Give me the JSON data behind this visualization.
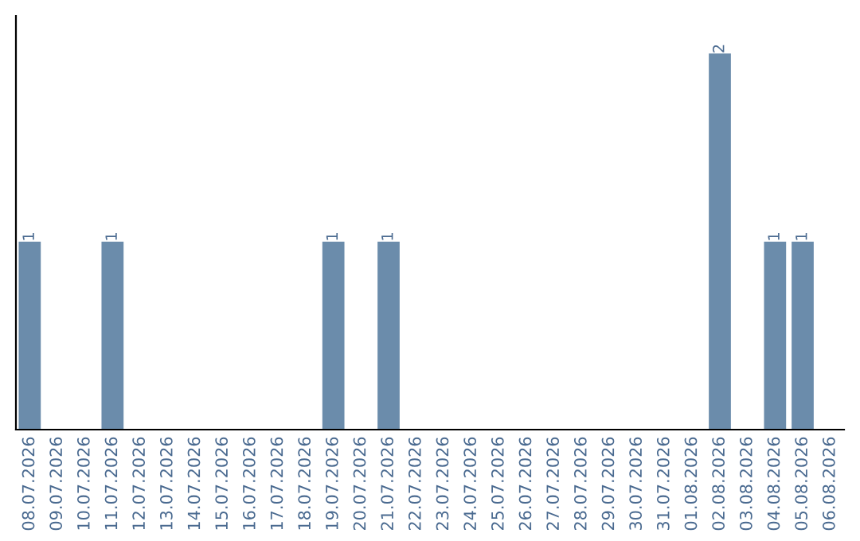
{
  "chart_data": {
    "type": "bar",
    "categories": [
      "08.07.2026",
      "09.07.2026",
      "10.07.2026",
      "11.07.2026",
      "12.07.2026",
      "13.07.2026",
      "14.07.2026",
      "15.07.2026",
      "16.07.2026",
      "17.07.2026",
      "18.07.2026",
      "19.07.2026",
      "20.07.2026",
      "21.07.2026",
      "22.07.2026",
      "23.07.2026",
      "24.07.2026",
      "25.07.2026",
      "26.07.2026",
      "27.07.2026",
      "28.07.2026",
      "29.07.2026",
      "30.07.2026",
      "31.07.2026",
      "01.08.2026",
      "02.08.2026",
      "03.08.2026",
      "04.08.2026",
      "05.08.2026",
      "06.08.2026"
    ],
    "values": [
      1,
      0,
      0,
      1,
      0,
      0,
      0,
      0,
      0,
      0,
      0,
      1,
      0,
      1,
      0,
      0,
      0,
      0,
      0,
      0,
      0,
      0,
      0,
      0,
      0,
      2,
      0,
      1,
      1,
      0
    ],
    "value_labels": [
      "1",
      null,
      null,
      "1",
      null,
      null,
      null,
      null,
      null,
      null,
      null,
      "1",
      null,
      "1",
      null,
      null,
      null,
      null,
      null,
      null,
      null,
      null,
      null,
      null,
      null,
      "2",
      null,
      "1",
      "1",
      null
    ],
    "color": "#6b8cab",
    "tick_labels": "x",
    "grid": false,
    "legend": false
  }
}
